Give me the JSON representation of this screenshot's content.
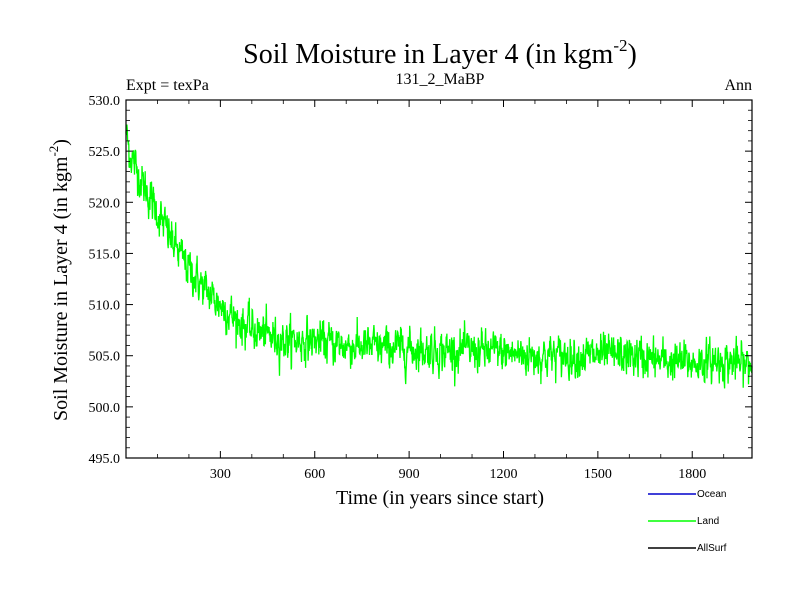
{
  "chart_data": {
    "type": "line",
    "title": "Soil Moisture in Layer 4 (in kgm",
    "title_sup": "-2",
    "title_close": ")",
    "subtitle_left": "Expt = texPa",
    "subtitle_center": "131_2_MaBP",
    "subtitle_right": "Ann",
    "xlabel": "Time (in years since start)",
    "ylabel": "Soil Moisture in Layer 4 (in kgm",
    "ylabel_sup": "-2",
    "ylabel_close": ")",
    "xlim": [
      0,
      1990
    ],
    "ylim": [
      495.0,
      530.0
    ],
    "xticks": [
      300,
      600,
      900,
      1200,
      1500,
      1800
    ],
    "xtick_labels": [
      "300",
      "600",
      "900",
      "1200",
      "1500",
      "1800"
    ],
    "yticks": [
      495,
      500,
      505,
      510,
      515,
      520,
      525,
      530
    ],
    "ytick_labels": [
      "495.0",
      "500.0",
      "505.0",
      "510.0",
      "515.0",
      "520.0",
      "525.0",
      "530.0"
    ],
    "grid": false,
    "legend_position": "bottom-right, below plot",
    "series": [
      {
        "name": "Ocean",
        "color": "#0000cc",
        "visible_in_plot": false,
        "x": [],
        "y": []
      },
      {
        "name": "Land",
        "color": "#00ff00",
        "visible_in_plot": true,
        "noise_amplitude": 1.6,
        "trend_x": [
          0,
          10,
          50,
          100,
          150,
          200,
          250,
          300,
          350,
          400,
          450,
          500,
          600,
          700,
          800,
          900,
          1000,
          1100,
          1200,
          1300,
          1400,
          1500,
          1600,
          1700,
          1800,
          1900,
          1990
        ],
        "trend_y": [
          527.0,
          525.0,
          522.0,
          519.0,
          516.0,
          513.5,
          511.5,
          510.0,
          508.5,
          507.5,
          507.0,
          506.5,
          506.5,
          506.0,
          505.8,
          505.7,
          505.5,
          505.5,
          505.3,
          505.0,
          505.0,
          505.0,
          505.0,
          504.5,
          504.3,
          504.5,
          504.0
        ]
      },
      {
        "name": "AllSurf",
        "color": "#000000",
        "visible_in_plot": false,
        "x": [],
        "y": []
      }
    ]
  }
}
